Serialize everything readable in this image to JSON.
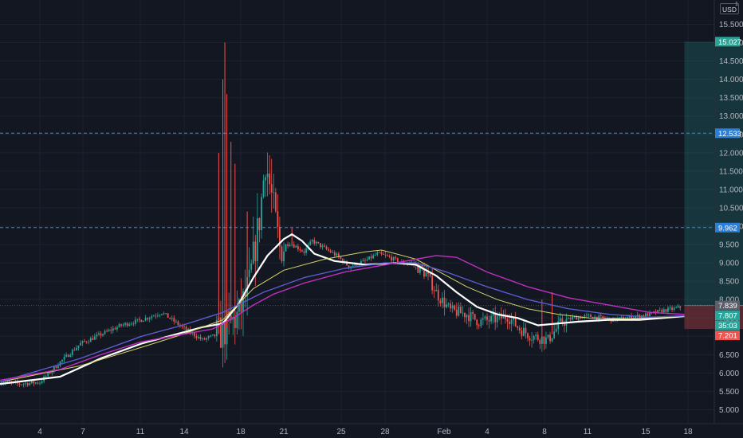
{
  "chart_data": {
    "type": "candlestick",
    "currency": "USD",
    "currency_mark": "1",
    "y_ticks": [
      "15.500",
      "15.000",
      "14.500",
      "14.000",
      "13.500",
      "13.000",
      "12.500",
      "12.000",
      "11.500",
      "11.000",
      "10.500",
      "10.000",
      "9.500",
      "9.000",
      "8.500",
      "8.000",
      "7.500",
      "7.000",
      "6.500",
      "6.000",
      "5.500",
      "5.000"
    ],
    "ylim": [
      4.65,
      15.85
    ],
    "x_ticks": [
      "4",
      "7",
      "11",
      "14",
      "18",
      "21",
      "25",
      "28",
      "Feb",
      "4",
      "8",
      "11",
      "15",
      "18"
    ],
    "bullish_color": "#26a69a",
    "bearish_color": "#ef5350",
    "price_path": [
      [
        0,
        5.75
      ],
      [
        1,
        5.7
      ],
      [
        2,
        5.75
      ],
      [
        3,
        6.3
      ],
      [
        4,
        6.8
      ],
      [
        5,
        7.05
      ],
      [
        6,
        7.3
      ],
      [
        7,
        7.45
      ],
      [
        8,
        7.65
      ],
      [
        9,
        7.25
      ],
      [
        10,
        6.9
      ],
      [
        11,
        7.1
      ],
      [
        11.8,
        7.6
      ],
      [
        12.3,
        8.4
      ],
      [
        12.8,
        10.2
      ],
      [
        13.1,
        11.8
      ],
      [
        13.4,
        10.8
      ],
      [
        13.8,
        9.4
      ],
      [
        14.3,
        9.55
      ],
      [
        15,
        9.3
      ],
      [
        15.4,
        9.6
      ],
      [
        16,
        9.4
      ],
      [
        16.6,
        9.2
      ],
      [
        17.2,
        8.9
      ],
      [
        18,
        9.05
      ],
      [
        18.6,
        9.25
      ],
      [
        19.2,
        9.15
      ],
      [
        19.8,
        9.0
      ],
      [
        20.3,
        9.0
      ],
      [
        21,
        8.7
      ],
      [
        21.6,
        8.1
      ],
      [
        22.2,
        7.7
      ],
      [
        23,
        7.6
      ],
      [
        23.6,
        7.4
      ],
      [
        24.3,
        7.45
      ],
      [
        25,
        7.55
      ],
      [
        25.6,
        7.2
      ],
      [
        26.2,
        7.0
      ],
      [
        27,
        6.9
      ],
      [
        27.6,
        7.35
      ],
      [
        28.2,
        7.5
      ],
      [
        29,
        7.55
      ],
      [
        29.6,
        7.5
      ],
      [
        30.2,
        7.45
      ],
      [
        30.8,
        7.5
      ],
      [
        31.4,
        7.55
      ],
      [
        32,
        7.6
      ],
      [
        32.6,
        7.7
      ],
      [
        33.2,
        7.75
      ],
      [
        33.6,
        7.8
      ]
    ],
    "spikes": [
      [
        11.1,
        15.0
      ],
      [
        11.0,
        14.0
      ],
      [
        11.2,
        13.6
      ],
      [
        11.4,
        12.3
      ],
      [
        10.8,
        12.0
      ],
      [
        11.6,
        11.7
      ],
      [
        12.2,
        10.4
      ],
      [
        14.4,
        9.95
      ],
      [
        27.2,
        8.2
      ],
      [
        26.7,
        8.0
      ]
    ],
    "moving_averages": [
      {
        "color": "#ffffff",
        "width": 2.2,
        "points": [
          [
            0,
            5.7
          ],
          [
            3,
            5.9
          ],
          [
            5,
            6.4
          ],
          [
            7,
            6.8
          ],
          [
            9,
            7.1
          ],
          [
            10,
            7.25
          ],
          [
            11,
            7.35
          ],
          [
            11.8,
            7.9
          ],
          [
            12.5,
            8.6
          ],
          [
            13.2,
            9.2
          ],
          [
            14,
            9.65
          ],
          [
            14.4,
            9.78
          ],
          [
            14.9,
            9.6
          ],
          [
            15.5,
            9.25
          ],
          [
            16.5,
            9.05
          ],
          [
            18,
            8.95
          ],
          [
            19.5,
            9.0
          ],
          [
            20.5,
            8.95
          ],
          [
            21.5,
            8.65
          ],
          [
            22.5,
            8.2
          ],
          [
            23.5,
            7.8
          ],
          [
            24.5,
            7.6
          ],
          [
            25.5,
            7.5
          ],
          [
            26.5,
            7.3
          ],
          [
            27.5,
            7.35
          ],
          [
            28.5,
            7.4
          ],
          [
            30,
            7.45
          ],
          [
            31.5,
            7.45
          ],
          [
            33.7,
            7.55
          ]
        ]
      },
      {
        "color": "#d4d46a",
        "width": 1,
        "points": [
          [
            0,
            5.75
          ],
          [
            4,
            6.2
          ],
          [
            7,
            6.7
          ],
          [
            9,
            7.05
          ],
          [
            11,
            7.45
          ],
          [
            12.5,
            8.3
          ],
          [
            14,
            8.8
          ],
          [
            16,
            9.1
          ],
          [
            18,
            9.3
          ],
          [
            18.8,
            9.35
          ],
          [
            19.5,
            9.25
          ],
          [
            20.5,
            9.1
          ],
          [
            21.5,
            8.8
          ],
          [
            23,
            8.35
          ],
          [
            24.5,
            8.0
          ],
          [
            26,
            7.75
          ],
          [
            27.5,
            7.6
          ],
          [
            29,
            7.5
          ],
          [
            31,
            7.48
          ],
          [
            33.7,
            7.55
          ]
        ]
      },
      {
        "color": "#5c5ccf",
        "width": 1.4,
        "points": [
          [
            0,
            5.75
          ],
          [
            4,
            6.4
          ],
          [
            7,
            7.0
          ],
          [
            9,
            7.3
          ],
          [
            11,
            7.65
          ],
          [
            13,
            8.2
          ],
          [
            15,
            8.6
          ],
          [
            17,
            8.85
          ],
          [
            19,
            9.0
          ],
          [
            20.5,
            9.0
          ],
          [
            22,
            8.75
          ],
          [
            24,
            8.35
          ],
          [
            26,
            8.0
          ],
          [
            28,
            7.75
          ],
          [
            30,
            7.6
          ],
          [
            32,
            7.52
          ],
          [
            33.7,
            7.56
          ]
        ]
      },
      {
        "color": "#c030c0",
        "width": 1.4,
        "points": [
          [
            0,
            5.8
          ],
          [
            3,
            6.1
          ],
          [
            5,
            6.5
          ],
          [
            7,
            6.85
          ],
          [
            9,
            7.05
          ],
          [
            10.5,
            7.2
          ],
          [
            11.5,
            7.5
          ],
          [
            12.5,
            7.85
          ],
          [
            13.5,
            8.15
          ],
          [
            15,
            8.45
          ],
          [
            17,
            8.75
          ],
          [
            19,
            8.95
          ],
          [
            20.5,
            9.1
          ],
          [
            21.5,
            9.2
          ],
          [
            22.5,
            9.15
          ],
          [
            24,
            8.75
          ],
          [
            26,
            8.35
          ],
          [
            28,
            8.05
          ],
          [
            30,
            7.85
          ],
          [
            32,
            7.65
          ],
          [
            33.7,
            7.6
          ]
        ]
      }
    ],
    "horizontal_lines": [
      {
        "value": 12.533,
        "label": "12.533"
      },
      {
        "value": 9.962,
        "label": "9.962"
      }
    ],
    "current_price_line": 7.839,
    "position": {
      "entry": 7.839,
      "target": 15.027,
      "stop": 7.201,
      "x_start_index": 33.7,
      "x_end_index": 40.1
    },
    "price_tags": [
      {
        "label": "15.027",
        "value": 15.027,
        "color": "#2aa395"
      },
      {
        "label": "12.533",
        "value": 12.533,
        "color": "#2d7fd6"
      },
      {
        "label": "9.962",
        "value": 9.962,
        "color": "#2d7fd6"
      },
      {
        "label": "7.839",
        "value": 7.839,
        "color": "#5d606b"
      },
      {
        "label": "7.807",
        "value": 7.807,
        "color": "#26a69a"
      },
      {
        "label": "35:03",
        "value": 7.55,
        "color": "#26a69a"
      },
      {
        "label": "7.201",
        "value": 7.201,
        "color": "#ef5350"
      }
    ]
  }
}
